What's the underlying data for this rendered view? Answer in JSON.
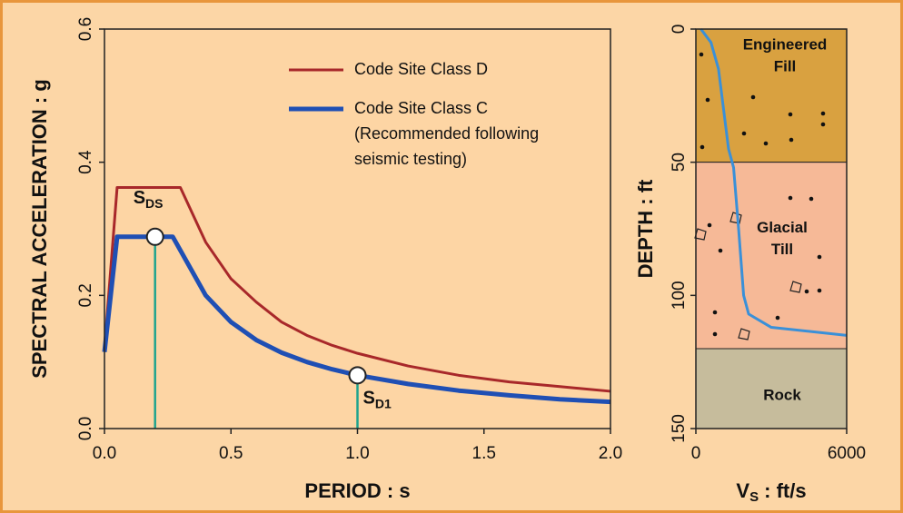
{
  "chart_data": [
    {
      "type": "line",
      "xlabel": "PERIOD : s",
      "ylabel": "SPECTRAL ACCELERATION : g",
      "xlim": [
        0,
        2
      ],
      "ylim": [
        0,
        0.6
      ],
      "xticks": [
        {
          "value": 0,
          "label": "0.0"
        },
        0.5,
        {
          "value": 1,
          "label": "1.0"
        },
        1.5,
        {
          "value": 2,
          "label": "2.0"
        }
      ],
      "yticks": [
        {
          "value": 0,
          "label": "0.0"
        },
        0.2,
        0.4,
        0.6
      ],
      "series": [
        {
          "name": "Code Site Class D",
          "color": "#a8282a",
          "x": [
            0,
            0.05,
            0.3,
            0.4,
            0.5,
            0.6,
            0.7,
            0.8,
            0.9,
            1.0,
            1.2,
            1.4,
            1.6,
            1.8,
            2.0
          ],
          "values": [
            0.12,
            0.362,
            0.362,
            0.28,
            0.225,
            0.19,
            0.16,
            0.14,
            0.125,
            0.113,
            0.094,
            0.08,
            0.07,
            0.063,
            0.056
          ]
        },
        {
          "name": "Code Site Class C",
          "note": [
            "(Recommended following",
            "seismic testing)"
          ],
          "color": "#1f4fb4",
          "x": [
            0,
            0.05,
            0.27,
            0.4,
            0.5,
            0.6,
            0.7,
            0.8,
            0.9,
            1.0,
            1.2,
            1.4,
            1.6,
            1.8,
            2.0
          ],
          "values": [
            0.115,
            0.288,
            0.288,
            0.2,
            0.16,
            0.133,
            0.114,
            0.1,
            0.089,
            0.08,
            0.067,
            0.057,
            0.05,
            0.044,
            0.04
          ]
        }
      ],
      "annotations": [
        {
          "label": "S",
          "subscript": "DS",
          "x": 0.2,
          "y": 0.288
        },
        {
          "label": "S",
          "subscript": "D1",
          "x": 1.0,
          "y": 0.08
        }
      ]
    },
    {
      "type": "line",
      "xlabel": "V",
      "xlabel_subscript": "S",
      "xlabel_unit": ":  ft/s",
      "ylabel": "DEPTH : ft",
      "xlim": [
        0,
        6000
      ],
      "ylim": [
        0,
        150
      ],
      "y_inverted": true,
      "xticks": [
        0,
        6000
      ],
      "yticks": [
        0,
        50,
        100,
        150
      ],
      "layers": [
        {
          "name": [
            "Engineered",
            "Fill"
          ],
          "top": 0,
          "bottom": 50,
          "color": "#d9a140"
        },
        {
          "name": [
            "Glacial",
            "Till"
          ],
          "top": 50,
          "bottom": 120,
          "color": "#f6b997"
        },
        {
          "name": [
            "Rock"
          ],
          "top": 120,
          "bottom": 150,
          "color": "#c6bc9c"
        }
      ],
      "series": [
        {
          "color": "#3a90d8",
          "x": [
            200,
            600,
            900,
            1100,
            1300,
            1500,
            1700,
            1900,
            2100,
            3000,
            6000
          ],
          "values": [
            0,
            5,
            15,
            30,
            45,
            52,
            75,
            100,
            107,
            112,
            115
          ]
        }
      ]
    }
  ]
}
